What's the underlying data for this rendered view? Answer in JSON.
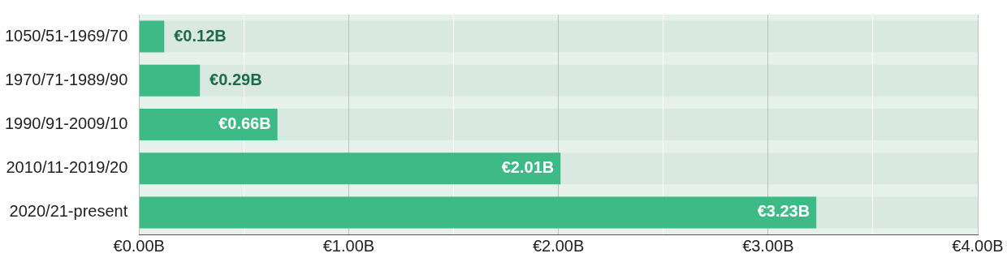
{
  "chart_data": {
    "type": "bar",
    "orientation": "horizontal",
    "categories": [
      "1050/51-1969/70",
      "1970/71-1989/90",
      "1990/91-2009/10",
      "2010/11-2019/20",
      "2020/21-present"
    ],
    "values": [
      0.12,
      0.29,
      0.66,
      2.01,
      3.23
    ],
    "value_labels": [
      "€0.12B",
      "€0.29B",
      "€0.66B",
      "€2.01B",
      "€3.23B"
    ],
    "color": "#3dba86",
    "xlim": [
      0,
      4
    ],
    "xticks": [
      {
        "value": 0,
        "label": "€0.00B"
      },
      {
        "value": 0.5,
        "label": null
      },
      {
        "value": 1,
        "label": "€1.00B"
      },
      {
        "value": 1.5,
        "label": null
      },
      {
        "value": 2,
        "label": "€2.00B"
      },
      {
        "value": 2.5,
        "label": null
      },
      {
        "value": 3,
        "label": "€3.00B"
      },
      {
        "value": 3.5,
        "label": null
      },
      {
        "value": 4,
        "label": "€4.00B"
      }
    ],
    "grid": "x",
    "legend": false
  }
}
